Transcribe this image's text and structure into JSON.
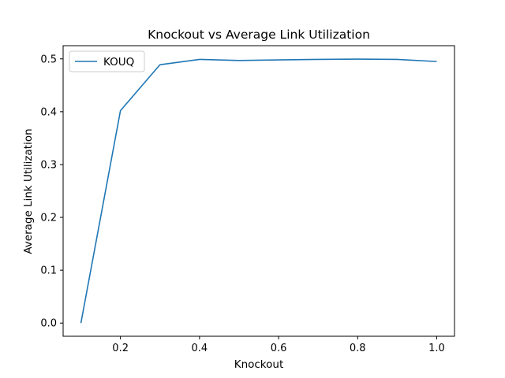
{
  "chart_data": {
    "type": "line",
    "title": "Knockout vs Average Link Utilization",
    "xlabel": "Knockout",
    "ylabel": "Average Link Utilization",
    "x": [
      0.1,
      0.2,
      0.3,
      0.4,
      0.5,
      0.6,
      0.7,
      0.8,
      0.9,
      1.0
    ],
    "series": [
      {
        "name": "KOUQ",
        "color": "#1f77b4",
        "values": [
          0.0,
          0.402,
          0.489,
          0.499,
          0.497,
          0.498,
          0.499,
          0.4995,
          0.499,
          0.495
        ]
      }
    ],
    "xlim": [
      0.055,
      1.045
    ],
    "ylim": [
      -0.025,
      0.525
    ],
    "xticks": [
      0.2,
      0.4,
      0.6,
      0.8,
      1.0
    ],
    "xtick_labels": [
      "0.2",
      "0.4",
      "0.6",
      "0.8",
      "1.0"
    ],
    "yticks": [
      0.0,
      0.1,
      0.2,
      0.3,
      0.4,
      0.5
    ],
    "ytick_labels": [
      "0.0",
      "0.1",
      "0.2",
      "0.3",
      "0.4",
      "0.5"
    ],
    "grid": false,
    "legend_position": "upper-left"
  }
}
